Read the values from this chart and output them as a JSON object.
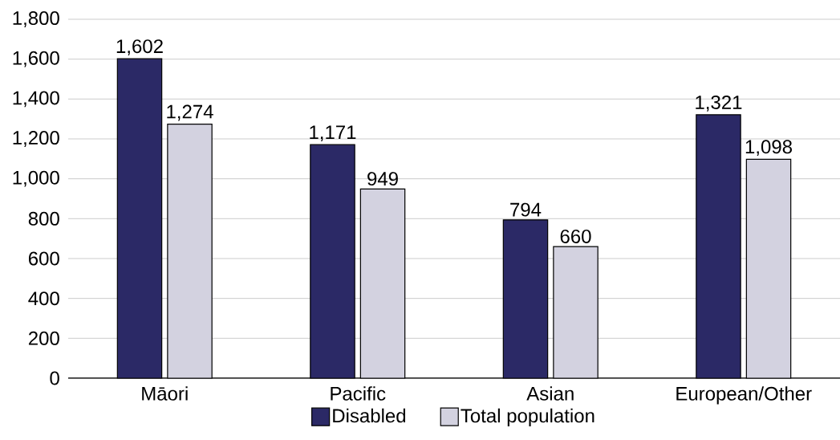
{
  "chart_data": {
    "type": "bar",
    "categories": [
      "Māori",
      "Pacific",
      "Asian",
      "European/Other"
    ],
    "series": [
      {
        "name": "Disabled",
        "color": "#2b2966",
        "values": [
          1602,
          1171,
          794,
          1321
        ],
        "value_labels": [
          "1,602",
          "1,171",
          "794",
          "1,321"
        ]
      },
      {
        "name": "Total population",
        "color": "#d3d2e0",
        "values": [
          1274,
          949,
          660,
          1098
        ],
        "value_labels": [
          "1,274",
          "949",
          "660",
          "1,098"
        ]
      }
    ],
    "ylim": [
      0,
      1800
    ],
    "yticks": [
      0,
      200,
      400,
      600,
      800,
      {
        "value": 1000,
        "label": "1,000"
      },
      {
        "value": 1200,
        "label": "1,200"
      },
      {
        "value": 1400,
        "label": "1,400"
      },
      {
        "value": 1600,
        "label": "1,600"
      },
      {
        "value": 1800,
        "label": "1,800"
      }
    ],
    "grid": "y",
    "legend": "bottom"
  }
}
